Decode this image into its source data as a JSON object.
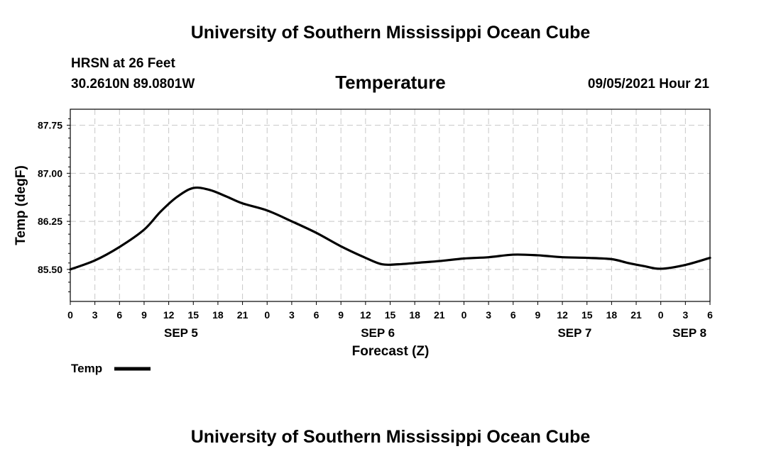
{
  "header": {
    "top_title": "University of Southern Mississippi Ocean Cube",
    "bottom_title": "University of Southern Mississippi Ocean Cube",
    "station": "HRSN at 26 Feet",
    "coordinates": "30.2610N  89.0801W",
    "variable": "Temperature",
    "issued": "09/05/2021 Hour 21"
  },
  "chart_data": {
    "type": "line",
    "title": "Temperature",
    "xlabel": "Forecast (Z)",
    "ylabel": "Temp (degF)",
    "ylim": [
      85.0,
      88.0
    ],
    "y_ticks": [
      85.5,
      86.25,
      87.0,
      87.75
    ],
    "y_tick_labels": [
      "85.50",
      "86.25",
      "87.00",
      "87.75"
    ],
    "x_range_hours": [
      0,
      78
    ],
    "x_tick_hours": [
      0,
      3,
      6,
      9,
      12,
      15,
      18,
      21,
      24,
      27,
      30,
      33,
      36,
      39,
      42,
      45,
      48,
      51,
      54,
      57,
      60,
      63,
      66,
      69,
      72,
      75,
      78
    ],
    "x_tick_labels": [
      "0",
      "3",
      "6",
      "9",
      "12",
      "15",
      "18",
      "21",
      "0",
      "3",
      "6",
      "9",
      "12",
      "15",
      "18",
      "21",
      "0",
      "3",
      "6",
      "9",
      "12",
      "15",
      "18",
      "21",
      "0",
      "3",
      "6"
    ],
    "date_labels": [
      {
        "label": "SEP 5",
        "hour": 13.5
      },
      {
        "label": "SEP 6",
        "hour": 37.5
      },
      {
        "label": "SEP 7",
        "hour": 61.5
      },
      {
        "label": "SEP 8",
        "hour": 75.5
      }
    ],
    "grid": true,
    "legend_position": "bottom-left",
    "series": [
      {
        "name": "Temp",
        "color": "#000000",
        "x": [
          0,
          3,
          6,
          9,
          11,
          13,
          15,
          17,
          19,
          21,
          24,
          27,
          30,
          33,
          36,
          38,
          40,
          43,
          45,
          48,
          51,
          54,
          57,
          60,
          63,
          66,
          68,
          70,
          72,
          75,
          78
        ],
        "y": [
          85.5,
          85.64,
          85.85,
          86.12,
          86.4,
          86.63,
          86.77,
          86.74,
          86.64,
          86.53,
          86.42,
          86.25,
          86.07,
          85.86,
          85.68,
          85.58,
          85.58,
          85.61,
          85.63,
          85.67,
          85.69,
          85.73,
          85.72,
          85.69,
          85.68,
          85.66,
          85.6,
          85.55,
          85.51,
          85.57,
          85.68
        ]
      }
    ]
  }
}
